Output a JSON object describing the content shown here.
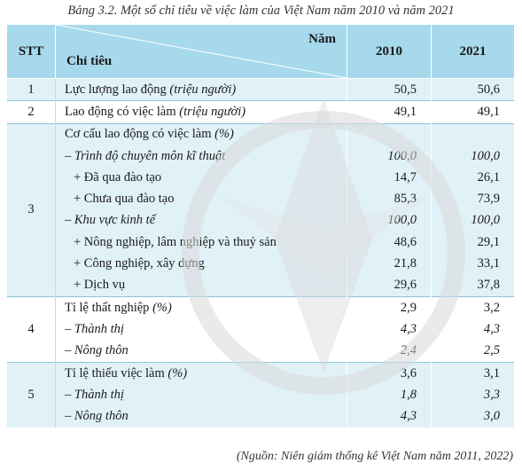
{
  "caption": "Bảng 3.2. Một số chỉ tiêu về việc làm của Việt Nam năm 2010 và năm 2021",
  "header": {
    "stt": "STT",
    "nam": "Năm",
    "chi_tieu": "Chỉ tiêu",
    "year1": "2010",
    "year2": "2021"
  },
  "groups": [
    {
      "stt": "1",
      "rows": [
        {
          "label": "Lực lượng lao động",
          "unit": "(triệu người)",
          "v2010": "50,5",
          "v2021": "50,6",
          "style": "normal"
        }
      ]
    },
    {
      "stt": "2",
      "rows": [
        {
          "label": "Lao động có việc làm",
          "unit": "(triệu người)",
          "v2010": "49,1",
          "v2021": "49,1",
          "style": "normal"
        }
      ]
    },
    {
      "stt": "3",
      "rows": [
        {
          "label": "Cơ cấu lao động có việc làm",
          "unit": "(%)",
          "v2010": "",
          "v2021": "",
          "style": "normal"
        },
        {
          "label": "– Trình độ chuyên môn kĩ thuật",
          "unit": "",
          "v2010": "100,0",
          "v2021": "100,0",
          "style": "italic"
        },
        {
          "label": "+ Đã qua đào tạo",
          "unit": "",
          "v2010": "14,7",
          "v2021": "26,1",
          "style": "sub"
        },
        {
          "label": "+ Chưa qua đào tạo",
          "unit": "",
          "v2010": "85,3",
          "v2021": "73,9",
          "style": "sub"
        },
        {
          "label": "– Khu vực kinh tế",
          "unit": "",
          "v2010": "100,0",
          "v2021": "100,0",
          "style": "italic"
        },
        {
          "label": "+ Nông nghiệp, lâm nghiệp và thuỷ sản",
          "unit": "",
          "v2010": "48,6",
          "v2021": "29,1",
          "style": "sub"
        },
        {
          "label": "+ Công nghiệp, xây dựng",
          "unit": "",
          "v2010": "21,8",
          "v2021": "33,1",
          "style": "sub"
        },
        {
          "label": "+ Dịch vụ",
          "unit": "",
          "v2010": "29,6",
          "v2021": "37,8",
          "style": "sub"
        }
      ]
    },
    {
      "stt": "4",
      "rows": [
        {
          "label": "Tỉ lệ thất nghiệp",
          "unit": "(%)",
          "v2010": "2,9",
          "v2021": "3,2",
          "style": "normal"
        },
        {
          "label": "– Thành thị",
          "unit": "",
          "v2010": "4,3",
          "v2021": "4,3",
          "style": "italic"
        },
        {
          "label": "– Nông thôn",
          "unit": "",
          "v2010": "2,4",
          "v2021": "2,5",
          "style": "italic"
        }
      ]
    },
    {
      "stt": "5",
      "rows": [
        {
          "label": "Tỉ lệ thiếu việc làm",
          "unit": "(%)",
          "v2010": "3,6",
          "v2021": "3,1",
          "style": "normal"
        },
        {
          "label": "– Thành thị",
          "unit": "",
          "v2010": "1,8",
          "v2021": "3,3",
          "style": "italic"
        },
        {
          "label": "– Nông thôn",
          "unit": "",
          "v2010": "4,3",
          "v2021": "3,0",
          "style": "italic"
        }
      ]
    }
  ],
  "source": "(Nguồn: Niên giám thống kê Việt Nam năm 2011, 2022)",
  "colors": {
    "header_bg": "#a6d9ec",
    "row_blue": "#e1f1f8",
    "row_white": "#ffffff",
    "separator": "#8ec4dc"
  }
}
